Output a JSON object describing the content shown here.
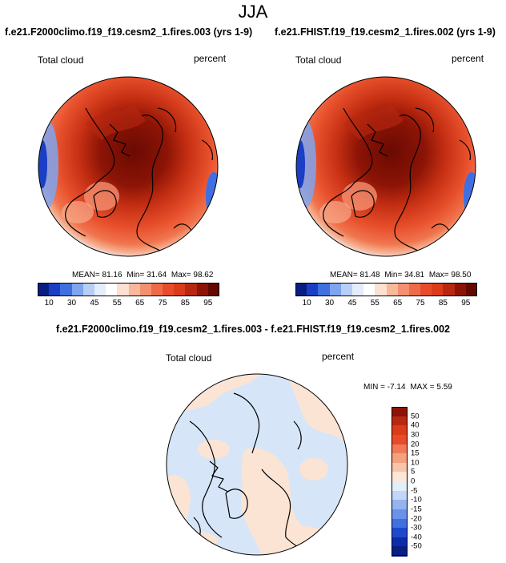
{
  "figure": {
    "season": "JJA"
  },
  "panels": [
    {
      "title": "f.e21.F2000climo.f19_f19.cesm2_1.fires.003 (yrs 1-9)",
      "variable": "Total cloud",
      "units": "percent",
      "stats": {
        "mean_label": "MEAN=",
        "mean": "81.16",
        "min_label": "Min=",
        "min": "31.64",
        "max_label": "Max=",
        "max": "98.62"
      }
    },
    {
      "title": "f.e21.FHIST.f19_f19.cesm2_1.fires.002 (yrs 1-9)",
      "variable": "Total cloud",
      "units": "percent",
      "stats": {
        "mean_label": "MEAN=",
        "mean": "81.48",
        "min_label": "Min=",
        "min": "34.81",
        "max_label": "Max=",
        "max": "98.50"
      }
    }
  ],
  "abs_colorbar": {
    "tick_labels": [
      "10",
      "30",
      "45",
      "55",
      "65",
      "75",
      "85",
      "95"
    ],
    "colors": [
      "#0a1e82",
      "#1a3fc4",
      "#3f6fe0",
      "#7fa5ef",
      "#b7cff7",
      "#e4edfb",
      "#ffffff",
      "#fde0cf",
      "#f8b89a",
      "#f49070",
      "#ef6a48",
      "#e84b2a",
      "#dc3b1a",
      "#b82810",
      "#8c1406",
      "#640800"
    ]
  },
  "difference_panel": {
    "title": "f.e21.F2000climo.f19_f19.cesm2_1.fires.003 - f.e21.FHIST.f19_f19.cesm2_1.fires.002",
    "variable": "Total cloud",
    "units": "percent",
    "min_label": "MIN =",
    "min": "-7.14",
    "max_label": "MAX =",
    "max": "5.59"
  },
  "diff_colorbar": {
    "labels": [
      "50",
      "40",
      "30",
      "20",
      "15",
      "10",
      "5",
      "0",
      "-5",
      "-10",
      "-15",
      "-20",
      "-30",
      "-40",
      "-50"
    ],
    "colors": [
      "#8c1406",
      "#b82810",
      "#dc3b1a",
      "#e84b2a",
      "#f07a56",
      "#f5a07e",
      "#fac4a8",
      "#fde6d6",
      "#e3eefc",
      "#c2d6f6",
      "#94b4ef",
      "#6a92e8",
      "#3f6fe0",
      "#1f48cc",
      "#0d2ca8",
      "#0a1e82"
    ]
  },
  "colors": {
    "land_outline": "#000000",
    "abs_polar_max": "#8c1406",
    "abs_edge_blue": "#3f6fe0",
    "diff_light_blue": "#d6e6f8",
    "diff_light_orange": "#fbe4d4"
  }
}
